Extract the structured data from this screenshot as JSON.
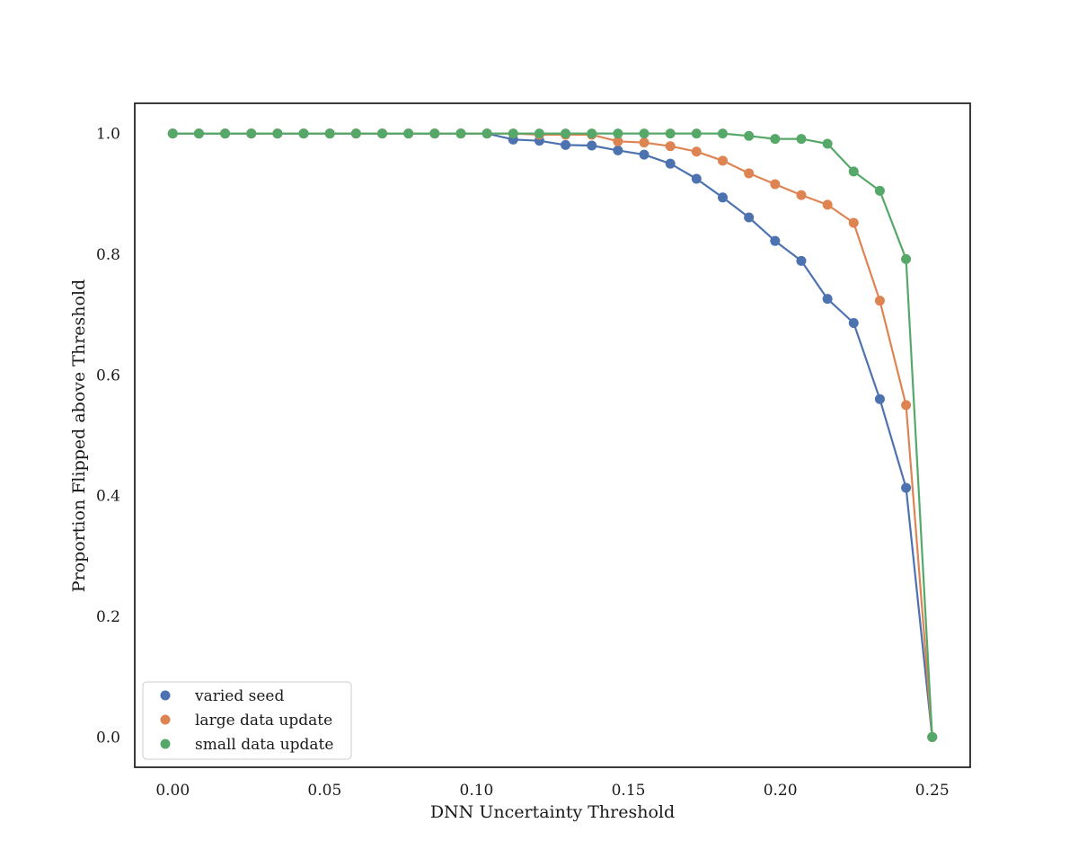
{
  "chart_data": {
    "type": "line",
    "xlabel": "DNN Uncertainty Threshold",
    "ylabel": "Proportion Flipped above Threshold",
    "xlim": [
      -0.0125,
      0.2625
    ],
    "ylim": [
      -0.05,
      1.05
    ],
    "xticks": [
      0.0,
      0.05,
      0.1,
      0.15,
      0.2,
      0.25
    ],
    "xtick_labels": [
      "0.00",
      "0.05",
      "0.10",
      "0.15",
      "0.20",
      "0.25"
    ],
    "yticks": [
      0.0,
      0.2,
      0.4,
      0.6,
      0.8,
      1.0
    ],
    "ytick_labels": [
      "0.0",
      "0.2",
      "0.4",
      "0.6",
      "0.8",
      "1.0"
    ],
    "grid": false,
    "legend_position": "lower-left",
    "x": [
      0.0,
      0.00862,
      0.01724,
      0.02586,
      0.03448,
      0.0431,
      0.05172,
      0.06034,
      0.06897,
      0.07759,
      0.08621,
      0.09483,
      0.10345,
      0.11207,
      0.12069,
      0.12931,
      0.13793,
      0.14655,
      0.15517,
      0.16379,
      0.17241,
      0.18103,
      0.18966,
      0.19828,
      0.2069,
      0.21552,
      0.22414,
      0.23276,
      0.24138,
      0.25
    ],
    "series": [
      {
        "name": "varied seed",
        "color": "#4c72b0",
        "values": [
          1.0,
          1.0,
          1.0,
          1.0,
          1.0,
          1.0,
          1.0,
          1.0,
          1.0,
          1.0,
          1.0,
          1.0,
          1.0,
          0.99,
          0.988,
          0.981,
          0.98,
          0.972,
          0.965,
          0.95,
          0.925,
          0.894,
          0.861,
          0.822,
          0.789,
          0.726,
          0.686,
          0.56,
          0.413,
          0.0
        ]
      },
      {
        "name": "large data update",
        "color": "#dd8452",
        "values": [
          1.0,
          1.0,
          1.0,
          1.0,
          1.0,
          1.0,
          1.0,
          1.0,
          1.0,
          1.0,
          1.0,
          1.0,
          1.0,
          1.0,
          0.998,
          0.998,
          0.998,
          0.987,
          0.985,
          0.979,
          0.97,
          0.955,
          0.934,
          0.916,
          0.898,
          0.882,
          0.852,
          0.723,
          0.55,
          0.0
        ]
      },
      {
        "name": "small data update",
        "color": "#55a868",
        "values": [
          1.0,
          1.0,
          1.0,
          1.0,
          1.0,
          1.0,
          1.0,
          1.0,
          1.0,
          1.0,
          1.0,
          1.0,
          1.0,
          1.0,
          1.0,
          1.0,
          1.0,
          1.0,
          1.0,
          1.0,
          1.0,
          1.0,
          0.996,
          0.991,
          0.991,
          0.983,
          0.937,
          0.905,
          0.792,
          0.0
        ]
      }
    ]
  }
}
